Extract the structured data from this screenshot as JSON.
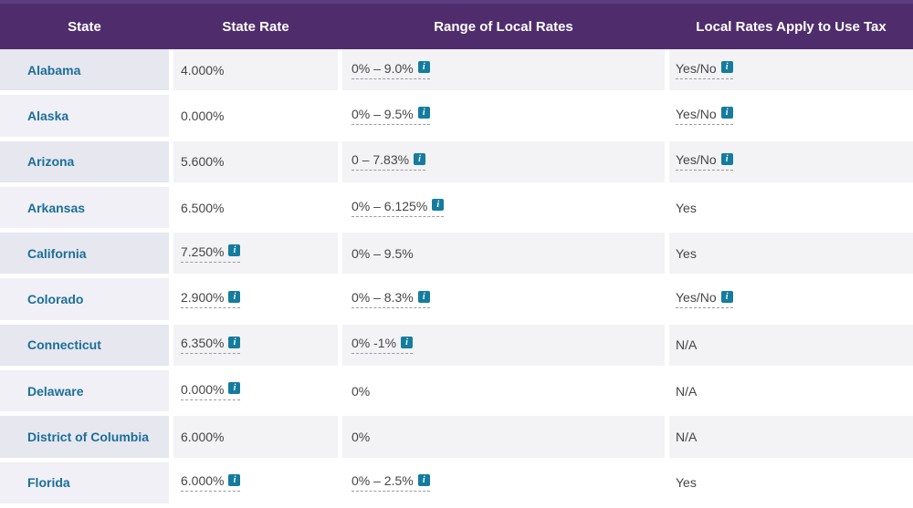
{
  "table": {
    "columns": [
      "State",
      "State Rate",
      "Range of Local Rates",
      "Local Rates Apply to Use Tax"
    ],
    "rows": [
      {
        "state": "Alabama",
        "state_rate": {
          "text": "4.000%",
          "linked": false,
          "info": false
        },
        "local_range": {
          "text": "0% – 9.0%",
          "linked": true,
          "info": true
        },
        "use_tax": {
          "text": "Yes/No",
          "linked": true,
          "info": true
        }
      },
      {
        "state": "Alaska",
        "state_rate": {
          "text": "0.000%",
          "linked": false,
          "info": false
        },
        "local_range": {
          "text": "0% – 9.5%",
          "linked": true,
          "info": true
        },
        "use_tax": {
          "text": "Yes/No",
          "linked": true,
          "info": true
        }
      },
      {
        "state": "Arizona",
        "state_rate": {
          "text": "5.600%",
          "linked": false,
          "info": false
        },
        "local_range": {
          "text": "0 – 7.83%",
          "linked": true,
          "info": true
        },
        "use_tax": {
          "text": "Yes/No",
          "linked": true,
          "info": true
        }
      },
      {
        "state": "Arkansas",
        "state_rate": {
          "text": "6.500%",
          "linked": false,
          "info": false
        },
        "local_range": {
          "text": "0% – 6.125%",
          "linked": true,
          "info": true
        },
        "use_tax": {
          "text": "Yes",
          "linked": false,
          "info": false
        }
      },
      {
        "state": "California",
        "state_rate": {
          "text": "7.250%",
          "linked": true,
          "info": true
        },
        "local_range": {
          "text": "0% – 9.5%",
          "linked": false,
          "info": false
        },
        "use_tax": {
          "text": "Yes",
          "linked": false,
          "info": false
        }
      },
      {
        "state": "Colorado",
        "state_rate": {
          "text": "2.900%",
          "linked": true,
          "info": true
        },
        "local_range": {
          "text": "0% – 8.3%",
          "linked": true,
          "info": true
        },
        "use_tax": {
          "text": "Yes/No",
          "linked": true,
          "info": true
        }
      },
      {
        "state": "Connecticut",
        "state_rate": {
          "text": "6.350%",
          "linked": true,
          "info": true
        },
        "local_range": {
          "text": "0% -1%",
          "linked": true,
          "info": true
        },
        "use_tax": {
          "text": "N/A",
          "linked": false,
          "info": false
        }
      },
      {
        "state": "Delaware",
        "state_rate": {
          "text": "0.000%",
          "linked": true,
          "info": true
        },
        "local_range": {
          "text": "0%",
          "linked": false,
          "info": false
        },
        "use_tax": {
          "text": "N/A",
          "linked": false,
          "info": false
        }
      },
      {
        "state": "District of Columbia",
        "state_rate": {
          "text": "6.000%",
          "linked": false,
          "info": false
        },
        "local_range": {
          "text": "0%",
          "linked": false,
          "info": false
        },
        "use_tax": {
          "text": "N/A",
          "linked": false,
          "info": false
        }
      },
      {
        "state": "Florida",
        "state_rate": {
          "text": "6.000%",
          "linked": true,
          "info": true
        },
        "local_range": {
          "text": "0% – 2.5%",
          "linked": true,
          "info": true
        },
        "use_tax": {
          "text": "Yes",
          "linked": false,
          "info": false
        }
      }
    ]
  },
  "icons": {
    "info_glyph": "i"
  },
  "colors": {
    "header_bg": "#4f2d6c",
    "header_top_strip": "#5e3c82",
    "state_link": "#1b6f99",
    "info_icon": "#147c9e",
    "body_text": "#454545",
    "row_odd_state_bg": "#e7e7f0",
    "row_odd_cell_bg": "#f3f2f5",
    "row_even_state_bg": "#f0f0f6",
    "row_even_cell_bg": "#ffffff"
  }
}
